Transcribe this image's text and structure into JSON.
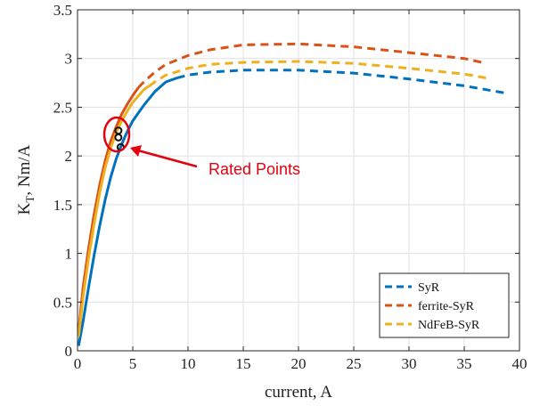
{
  "chart_data": {
    "type": "line",
    "title": "",
    "xlabel": "current, A",
    "ylabel_main": "K",
    "ylabel_sub": "T",
    "ylabel_rest": ", Nm/A",
    "xlim": [
      0,
      40
    ],
    "ylim": [
      0,
      3.5
    ],
    "xticks": [
      0,
      5,
      10,
      15,
      20,
      25,
      30,
      35,
      40
    ],
    "yticks": [
      0,
      0.5,
      1,
      1.5,
      2,
      2.5,
      3,
      3.5
    ],
    "xtick_labels": [
      "0",
      "5",
      "10",
      "15",
      "20",
      "25",
      "30",
      "35",
      "40"
    ],
    "ytick_labels": [
      "0",
      "0.5",
      "1",
      "1.5",
      "2",
      "2.5",
      "3",
      "3.5"
    ],
    "grid": true,
    "legend_position": "bottom-right",
    "series": [
      {
        "name": "SyR",
        "color": "#0072BD",
        "solid": [
          [
            0.1,
            0.05
          ],
          [
            0.5,
            0.3
          ],
          [
            1,
            0.65
          ],
          [
            1.5,
            0.98
          ],
          [
            2,
            1.28
          ],
          [
            2.5,
            1.55
          ],
          [
            3,
            1.78
          ],
          [
            3.5,
            1.97
          ],
          [
            4,
            2.12
          ],
          [
            4.5,
            2.25
          ],
          [
            5,
            2.36
          ],
          [
            6,
            2.52
          ],
          [
            7,
            2.66
          ],
          [
            8,
            2.76
          ],
          [
            9,
            2.8
          ]
        ],
        "dashed": [
          [
            9,
            2.8
          ],
          [
            10,
            2.83
          ],
          [
            12,
            2.86
          ],
          [
            15,
            2.88
          ],
          [
            20,
            2.88
          ],
          [
            25,
            2.85
          ],
          [
            30,
            2.79
          ],
          [
            35,
            2.72
          ],
          [
            39,
            2.64
          ]
        ]
      },
      {
        "name": "ferrite-SyR",
        "color": "#D95319",
        "solid": [
          [
            0.1,
            0.2
          ],
          [
            0.5,
            0.65
          ],
          [
            1,
            1.05
          ],
          [
            1.5,
            1.4
          ],
          [
            2,
            1.7
          ],
          [
            2.5,
            1.95
          ],
          [
            3,
            2.15
          ],
          [
            3.5,
            2.3
          ],
          [
            4,
            2.43
          ],
          [
            4.5,
            2.53
          ],
          [
            5,
            2.62
          ],
          [
            5.5,
            2.7
          ]
        ],
        "dashed": [
          [
            5.5,
            2.7
          ],
          [
            6,
            2.76
          ],
          [
            7,
            2.86
          ],
          [
            8,
            2.94
          ],
          [
            10,
            3.03
          ],
          [
            12,
            3.09
          ],
          [
            15,
            3.14
          ],
          [
            20,
            3.15
          ],
          [
            25,
            3.12
          ],
          [
            30,
            3.06
          ],
          [
            35,
            3.0
          ],
          [
            37,
            2.95
          ]
        ]
      },
      {
        "name": "NdFeB-SyR",
        "color": "#EDB120",
        "solid": [
          [
            0.1,
            0.15
          ],
          [
            0.5,
            0.55
          ],
          [
            1,
            0.95
          ],
          [
            1.5,
            1.3
          ],
          [
            2,
            1.62
          ],
          [
            2.5,
            1.88
          ],
          [
            3,
            2.08
          ],
          [
            3.5,
            2.24
          ],
          [
            4,
            2.36
          ],
          [
            4.5,
            2.46
          ],
          [
            5,
            2.55
          ],
          [
            6,
            2.68
          ],
          [
            6.5,
            2.72
          ]
        ],
        "dashed": [
          [
            6.5,
            2.72
          ],
          [
            7,
            2.76
          ],
          [
            8,
            2.83
          ],
          [
            10,
            2.9
          ],
          [
            12,
            2.94
          ],
          [
            15,
            2.96
          ],
          [
            20,
            2.97
          ],
          [
            25,
            2.95
          ],
          [
            30,
            2.9
          ],
          [
            35,
            2.84
          ],
          [
            37,
            2.8
          ]
        ]
      }
    ],
    "rated_points": [
      [
        3.7,
        2.26
      ],
      [
        3.7,
        2.19
      ],
      [
        3.9,
        2.09
      ]
    ],
    "annotation": {
      "text": "Rated Points",
      "color": "#E3000F"
    }
  }
}
